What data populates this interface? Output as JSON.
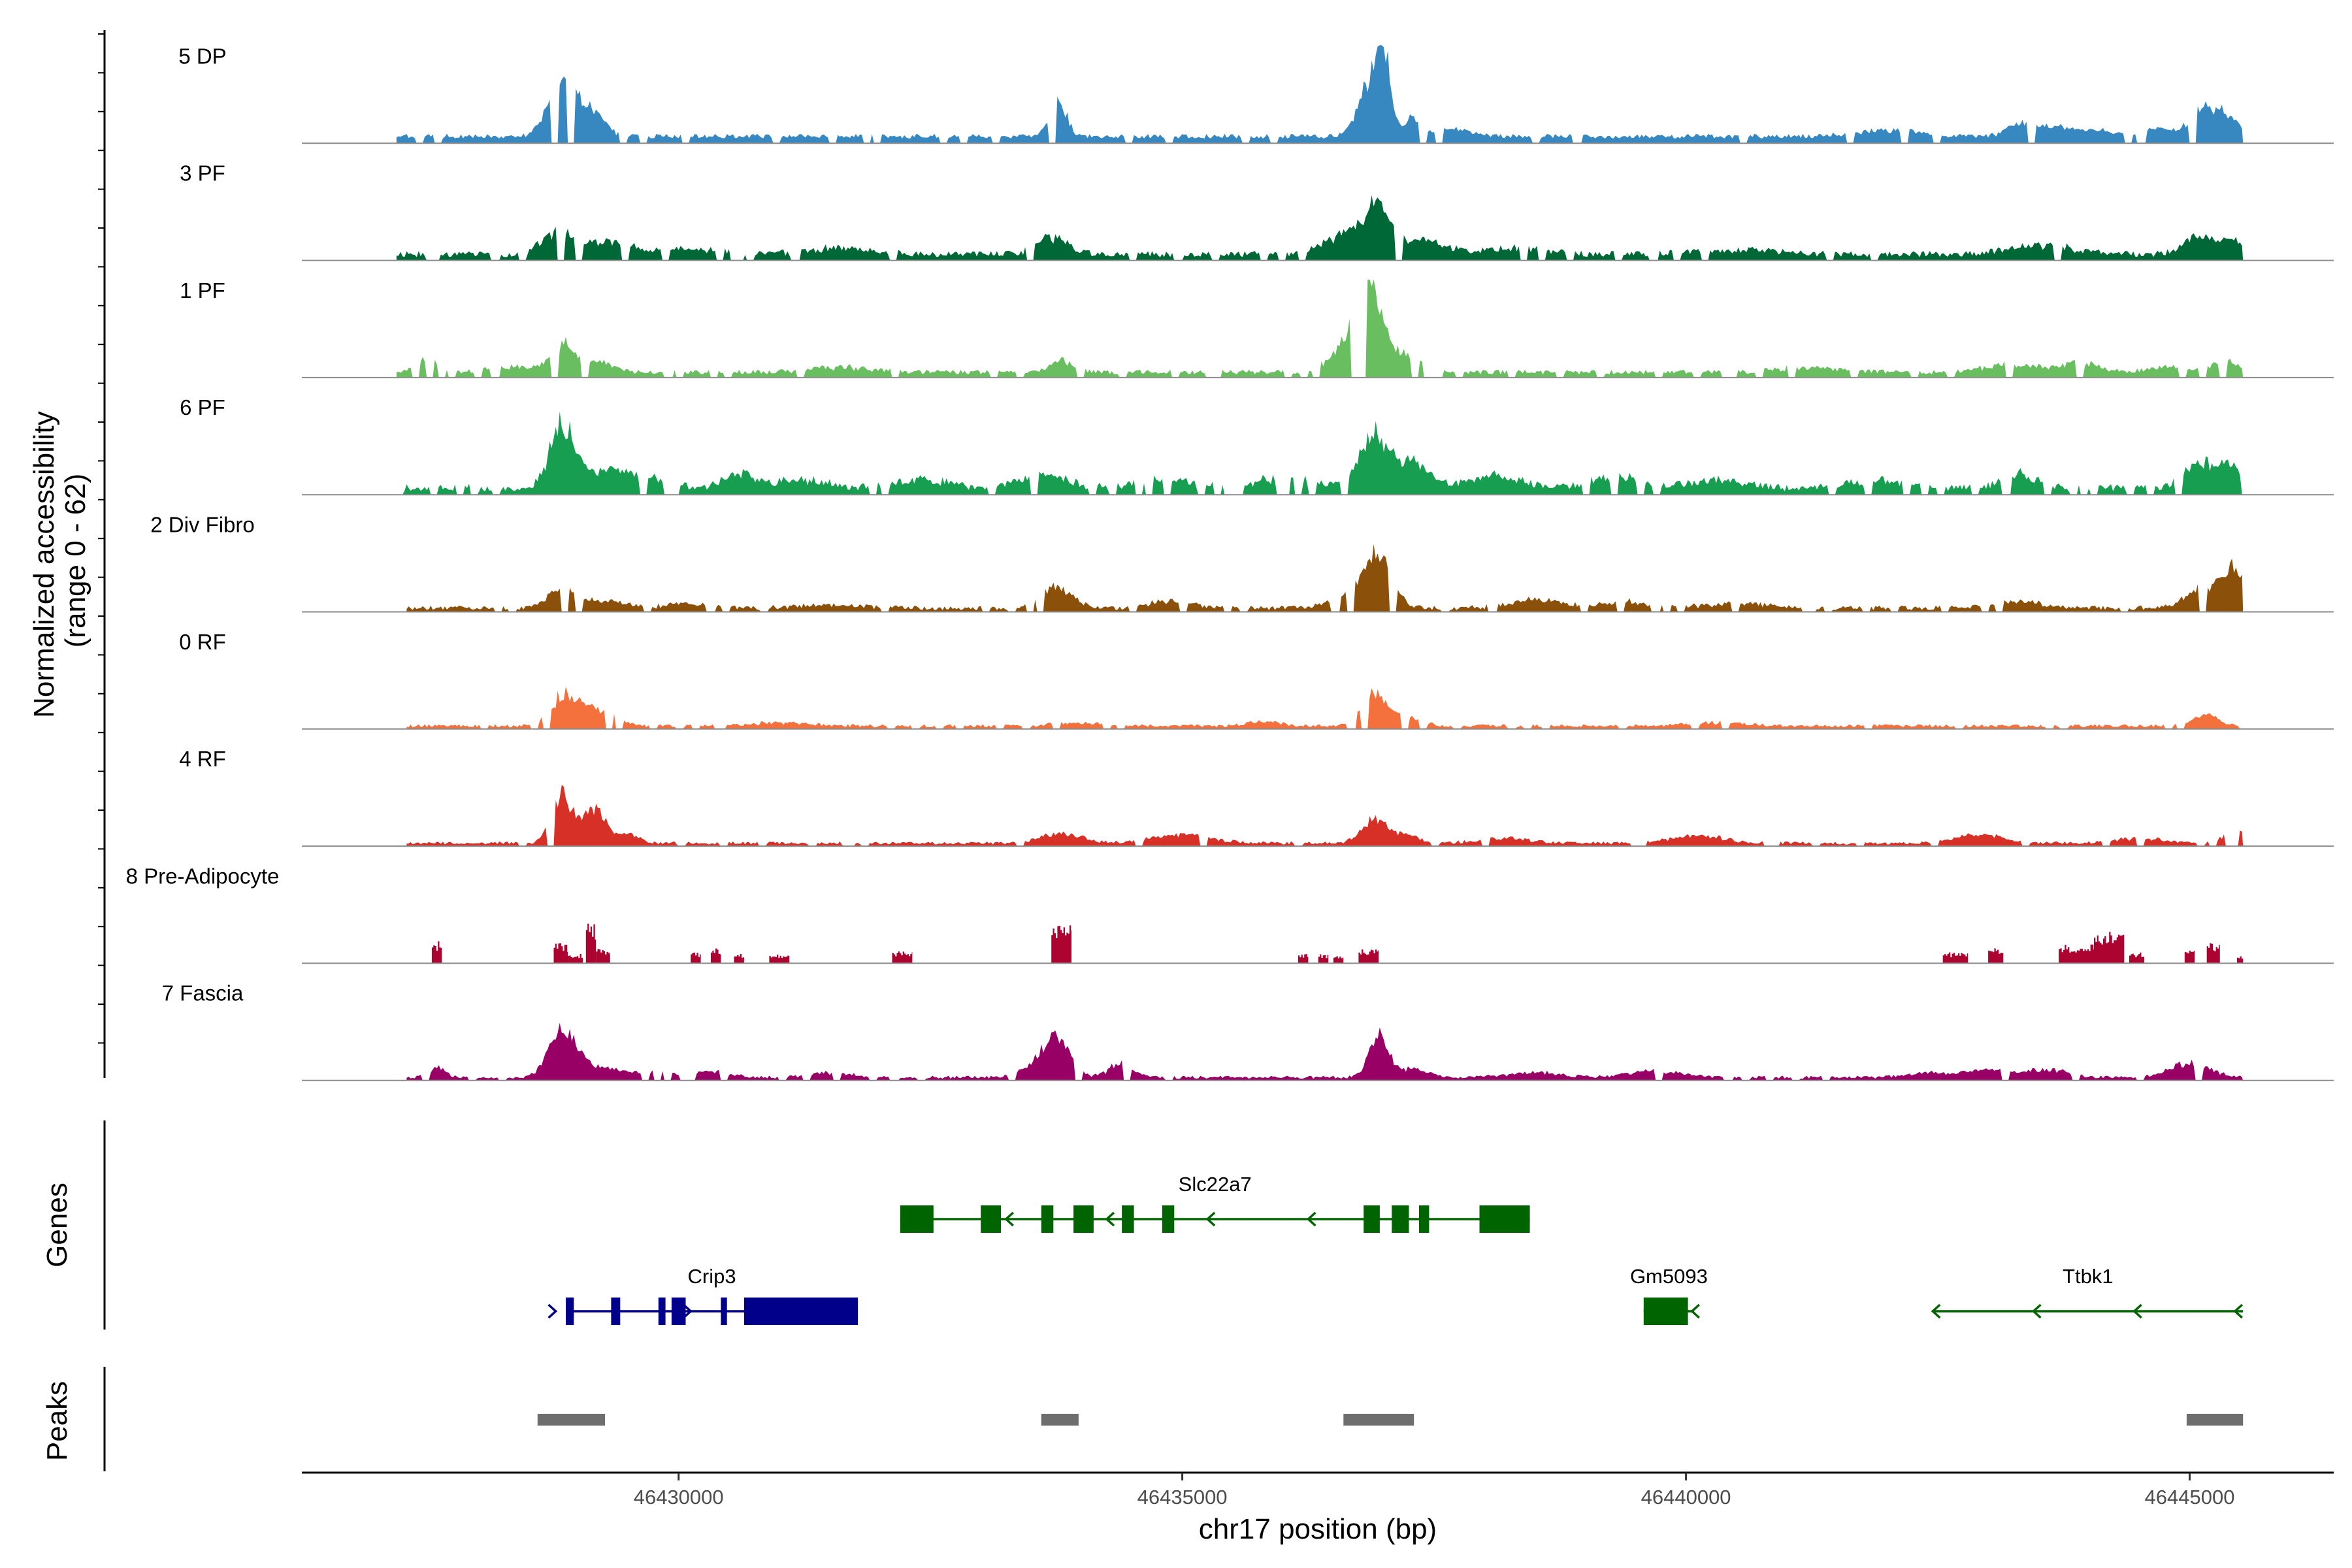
{
  "chart_data": {
    "type": "area",
    "title": "",
    "xlabel": "chr17 position (bp)",
    "ylabel": "Normalized accessibility\n(range 0 - 62)",
    "ylabel_lines": [
      "Normalized accessibility",
      "(range 0 - 62)"
    ],
    "y_range": [
      0,
      62
    ],
    "xlim": [
      46426260,
      46446430
    ],
    "region_end": 46445530,
    "x_ticks": [
      46430000,
      46435000,
      46440000,
      46445000
    ],
    "x_tick_labels": [
      "46430000",
      "46435000",
      "46440000",
      "46445000"
    ],
    "series": [
      {
        "name": "5 DP",
        "color": "#3787C0",
        "start": 46427200,
        "continuous": true,
        "baseline": 3,
        "jitter": 3,
        "noise_seed": 11,
        "peaks": [
          [
            46428850,
            34,
            140
          ],
          [
            46429100,
            12,
            90
          ],
          [
            46429250,
            8,
            80
          ],
          [
            46433770,
            21,
            80
          ],
          [
            46436880,
            34,
            120
          ],
          [
            46437000,
            40,
            70
          ],
          [
            46437300,
            12,
            80
          ],
          [
            46437700,
            5,
            150
          ],
          [
            46442000,
            4,
            300
          ],
          [
            46443300,
            7,
            120
          ],
          [
            46443600,
            5,
            200
          ],
          [
            46444000,
            4,
            200
          ],
          [
            46444700,
            5,
            150
          ],
          [
            46445100,
            18,
            100
          ],
          [
            46445350,
            14,
            120
          ]
        ]
      },
      {
        "name": "3 PF",
        "color": "#006837",
        "start": 46427200,
        "continuous": true,
        "baseline": 2,
        "jitter": 4,
        "noise_seed": 23,
        "peaks": [
          [
            46428800,
            14,
            150
          ],
          [
            46429300,
            8,
            200
          ],
          [
            46430100,
            3,
            400
          ],
          [
            46431600,
            4,
            300
          ],
          [
            46433700,
            11,
            150
          ],
          [
            46436700,
            14,
            250
          ],
          [
            46436950,
            24,
            120
          ],
          [
            46437400,
            9,
            200
          ],
          [
            46438300,
            4,
            300
          ],
          [
            46440500,
            3,
            400
          ],
          [
            46443500,
            6,
            300
          ],
          [
            46445100,
            11,
            150
          ],
          [
            46445450,
            10,
            100
          ]
        ]
      },
      {
        "name": "1 PF",
        "color": "#69BE5F",
        "start": 46427200,
        "continuous": true,
        "baseline": 2,
        "jitter": 3,
        "noise_seed": 37,
        "peaks": [
          [
            46427500,
            8,
            120
          ],
          [
            46428350,
            3,
            250
          ],
          [
            46428850,
            17,
            120
          ],
          [
            46429200,
            6,
            150
          ],
          [
            46431600,
            3,
            300
          ],
          [
            46433800,
            7,
            120
          ],
          [
            46436850,
            52,
            120
          ],
          [
            46436700,
            18,
            200
          ],
          [
            46437200,
            11,
            150
          ],
          [
            46441200,
            3,
            300
          ],
          [
            46443200,
            5,
            250
          ],
          [
            46443900,
            6,
            200
          ],
          [
            46445350,
            7,
            120
          ],
          [
            46444800,
            3,
            200
          ]
        ]
      },
      {
        "name": "6 PF",
        "color": "#189E51",
        "start": 46427200,
        "continuous": true,
        "baseline": 2,
        "jitter": 5,
        "noise_seed": 41,
        "peaks": [
          [
            46428850,
            40,
            120
          ],
          [
            46429300,
            11,
            200
          ],
          [
            46429700,
            6,
            200
          ],
          [
            46430600,
            9,
            150
          ],
          [
            46431200,
            5,
            250
          ],
          [
            46432400,
            5,
            250
          ],
          [
            46433600,
            8,
            250
          ],
          [
            46434800,
            5,
            250
          ],
          [
            46436000,
            6,
            300
          ],
          [
            46436900,
            32,
            130
          ],
          [
            46437250,
            16,
            200
          ],
          [
            46438100,
            7,
            250
          ],
          [
            46439300,
            7,
            250
          ],
          [
            46440300,
            5,
            250
          ],
          [
            46441900,
            5,
            250
          ],
          [
            46443300,
            9,
            150
          ],
          [
            46445100,
            16,
            150
          ],
          [
            46445400,
            12,
            100
          ]
        ]
      },
      {
        "name": "2 Div Fibro",
        "color": "#8B5009",
        "start": 46427300,
        "continuous": true,
        "baseline": 1,
        "jitter": 3,
        "noise_seed": 53,
        "peaks": [
          [
            46428850,
            11,
            150
          ],
          [
            46429300,
            4,
            200
          ],
          [
            46430100,
            3,
            200
          ],
          [
            46431500,
            2,
            300
          ],
          [
            46433750,
            13,
            160
          ],
          [
            46434900,
            5,
            200
          ],
          [
            46436950,
            32,
            130
          ],
          [
            46436700,
            10,
            200
          ],
          [
            46438500,
            5,
            250
          ],
          [
            46439400,
            4,
            250
          ],
          [
            46440500,
            3,
            300
          ],
          [
            46443300,
            4,
            250
          ],
          [
            46445200,
            14,
            200
          ],
          [
            46445450,
            18,
            100
          ]
        ]
      },
      {
        "name": "0 RF",
        "color": "#F4713D",
        "start": 46427300,
        "continuous": true,
        "baseline": 1,
        "jitter": 2,
        "noise_seed": 67,
        "peaks": [
          [
            46428850,
            19,
            120
          ],
          [
            46429100,
            12,
            120
          ],
          [
            46429350,
            6,
            100
          ],
          [
            46431000,
            2,
            300
          ],
          [
            46434000,
            2,
            250
          ],
          [
            46435800,
            3,
            150
          ],
          [
            46436900,
            20,
            120
          ],
          [
            46437200,
            6,
            150
          ],
          [
            46440300,
            2,
            300
          ],
          [
            46445150,
            7,
            120
          ]
        ]
      },
      {
        "name": "4 RF",
        "color": "#D73027",
        "start": 46427300,
        "continuous": true,
        "baseline": 1,
        "jitter": 2,
        "noise_seed": 79,
        "peaks": [
          [
            46428830,
            29,
            100
          ],
          [
            46429050,
            10,
            100
          ],
          [
            46429200,
            18,
            90
          ],
          [
            46429500,
            6,
            100
          ],
          [
            46433800,
            6,
            200
          ],
          [
            46435000,
            5,
            300
          ],
          [
            46436900,
            14,
            120
          ],
          [
            46437200,
            5,
            150
          ],
          [
            46438200,
            3,
            250
          ],
          [
            46440100,
            5,
            250
          ],
          [
            46442900,
            5,
            250
          ],
          [
            46444500,
            3,
            250
          ],
          [
            46445450,
            9,
            100
          ]
        ]
      },
      {
        "name": "8 Pre-Adipocyte",
        "color": "#AC0330",
        "start": 46427500,
        "continuous": false,
        "baseline": 0,
        "jitter": 0,
        "noise_seed": 83,
        "blocks": [
          [
            46427550,
            46427650,
            14
          ],
          [
            46428760,
            46428900,
            13
          ],
          [
            46428900,
            46429050,
            6
          ],
          [
            46429080,
            46429180,
            26
          ],
          [
            46429180,
            46429320,
            9
          ],
          [
            46430120,
            46430220,
            7
          ],
          [
            46430320,
            46430420,
            10
          ],
          [
            46430550,
            46430650,
            6
          ],
          [
            46430900,
            46431100,
            6
          ],
          [
            46432120,
            46432320,
            8
          ],
          [
            46433700,
            46433900,
            24
          ],
          [
            46436150,
            46436250,
            6
          ],
          [
            46436350,
            46436450,
            6
          ],
          [
            46436500,
            46436600,
            5
          ],
          [
            46436750,
            46436950,
            9
          ],
          [
            46442550,
            46442800,
            7
          ],
          [
            46443000,
            46443150,
            10
          ],
          [
            46443700,
            46444050,
            12
          ],
          [
            46444050,
            46444350,
            20
          ],
          [
            46444400,
            46444550,
            7
          ],
          [
            46444950,
            46445050,
            9
          ],
          [
            46445170,
            46445300,
            13
          ],
          [
            46445470,
            46445530,
            5
          ]
        ]
      },
      {
        "name": "7 Fascia",
        "color": "#990066",
        "start": 46427300,
        "continuous": true,
        "baseline": 1,
        "jitter": 2,
        "noise_seed": 97,
        "peaks": [
          [
            46427600,
            6,
            80
          ],
          [
            46428850,
            29,
            130
          ],
          [
            46429200,
            6,
            200
          ],
          [
            46429700,
            3,
            200
          ],
          [
            46430300,
            4,
            200
          ],
          [
            46431500,
            3,
            200
          ],
          [
            46433750,
            24,
            130
          ],
          [
            46433500,
            6,
            150
          ],
          [
            46434400,
            9,
            120
          ],
          [
            46436950,
            25,
            100
          ],
          [
            46437300,
            5,
            150
          ],
          [
            46438500,
            3,
            250
          ],
          [
            46439700,
            4,
            250
          ],
          [
            46442400,
            3,
            200
          ],
          [
            46443000,
            5,
            200
          ],
          [
            46443600,
            5,
            200
          ],
          [
            46445000,
            9,
            200
          ]
        ]
      }
    ],
    "genes_panel": {
      "title": "Genes",
      "genes": [
        {
          "name": "Slc22a7",
          "color": "#006400",
          "strand": "-",
          "row": 1,
          "start": 46432200,
          "end": 46438450,
          "exons": [
            [
              46432200,
              46432530
            ],
            [
              46433000,
              46433200
            ],
            [
              46433600,
              46433720
            ],
            [
              46433920,
              46434120
            ],
            [
              46434400,
              46434520
            ],
            [
              46434800,
              46434920
            ],
            [
              46436800,
              46436960
            ],
            [
              46437080,
              46437250
            ],
            [
              46437350,
              46437450
            ],
            [
              46437950,
              46438450
            ]
          ],
          "arrows": [
            46433250,
            46434250,
            46435250,
            46436250
          ]
        },
        {
          "name": "Crip3",
          "color": "#00008B",
          "strand": "+",
          "row": 2,
          "start": 46428880,
          "end": 46431780,
          "exons": [
            [
              46428880,
              46428960
            ],
            [
              46429330,
              46429420
            ],
            [
              46429800,
              46429870
            ],
            [
              46429930,
              46430070
            ],
            [
              46430420,
              46430480
            ],
            [
              46430650,
              46431780
            ]
          ],
          "arrows": [
            46428780,
            46430120
          ]
        },
        {
          "name": "Gm5093",
          "color": "#006400",
          "strand": "-",
          "row": 2,
          "start": 46439580,
          "end": 46440080,
          "exons": [
            [
              46439580,
              46440020
            ]
          ],
          "arrows": [
            46440060
          ]
        },
        {
          "name": "Ttbk1",
          "color": "#006400",
          "strand": "-",
          "row": 2,
          "start": 46442450,
          "end": 46445530,
          "exons": [],
          "arrows": [
            46442450,
            46443450,
            46444450,
            46445450
          ]
        }
      ]
    },
    "peaks_panel": {
      "title": "Peaks",
      "color": "#6E6E6E",
      "peaks": [
        [
          46428600,
          46429270
        ],
        [
          46433600,
          46433970
        ],
        [
          46436600,
          46437300
        ],
        [
          46444970,
          46445530
        ]
      ]
    }
  }
}
